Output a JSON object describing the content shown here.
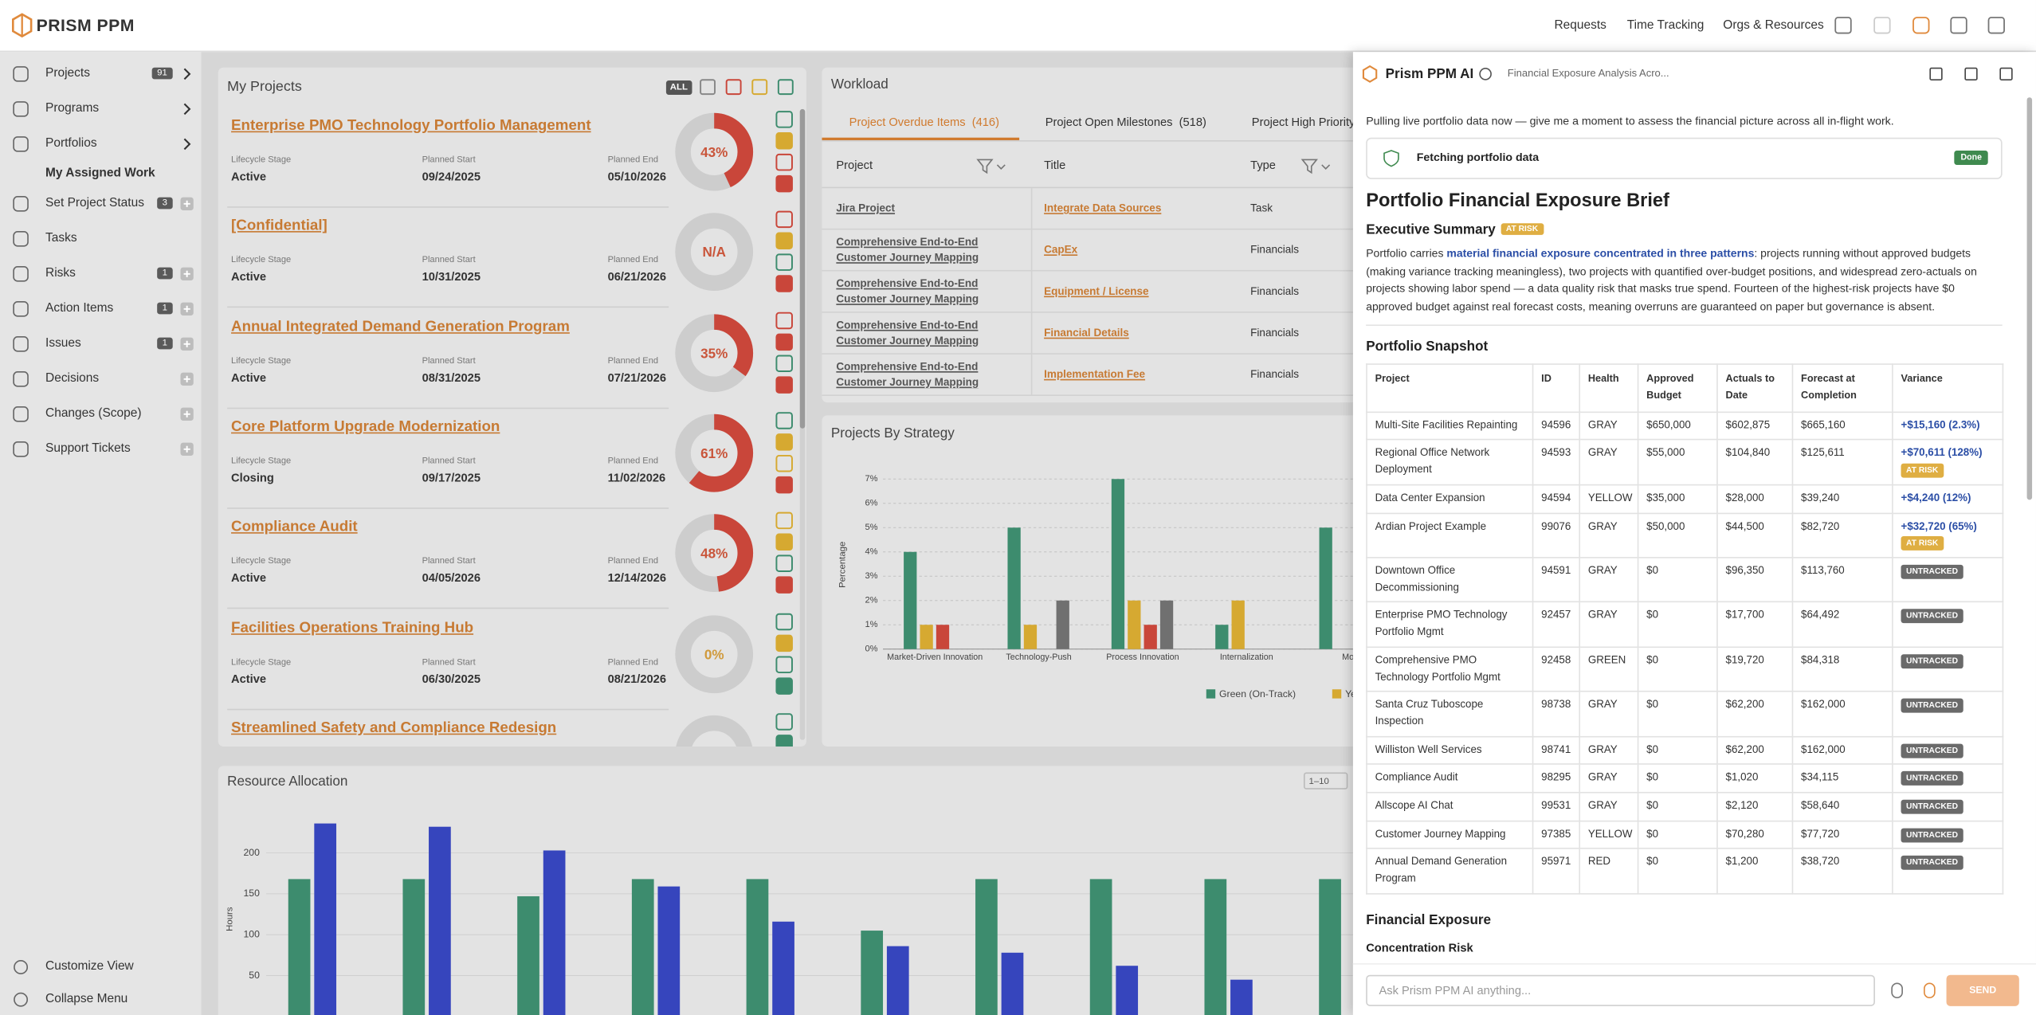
{
  "topbar": {
    "logo": "PRISM PPM",
    "nav": [
      "Requests",
      "Time Tracking",
      "Orgs & Resources"
    ]
  },
  "sidebar": {
    "items": [
      {
        "label": "Projects",
        "count": 91,
        "expandable": true
      },
      {
        "label": "Programs",
        "expandable": true
      },
      {
        "label": "Portfolios",
        "expandable": true
      },
      {
        "label": "My Assigned Work",
        "sub": true
      },
      {
        "label": "Set Project Status",
        "count": 3,
        "add": true
      },
      {
        "label": "Tasks"
      },
      {
        "label": "Risks",
        "count": 1,
        "add": true
      },
      {
        "label": "Action Items",
        "count": 1,
        "add": true
      },
      {
        "label": "Issues",
        "count": 1,
        "add": true
      },
      {
        "label": "Decisions",
        "add": true
      },
      {
        "label": "Changes (Scope)",
        "add": true
      },
      {
        "label": "Support Tickets",
        "add": true
      }
    ],
    "footer": [
      "Customize View",
      "Collapse Menu"
    ]
  },
  "my_projects": {
    "title": "My Projects",
    "filter": "ALL",
    "labels": {
      "stage": "Lifecycle Stage",
      "start": "Planned Start",
      "end": "Planned End"
    },
    "projects": [
      {
        "name": "Enterprise PMO Technology Portfolio Management",
        "stage": "Active",
        "start": "09/24/2025",
        "end": "05/10/2026",
        "progress": 43,
        "progress_label": "43%"
      },
      {
        "name": "[Confidential]",
        "stage": "Active",
        "start": "10/31/2025",
        "end": "06/21/2026",
        "progress": null,
        "progress_label": "N/A"
      },
      {
        "name": "Annual Integrated Demand Generation Program",
        "stage": "Active",
        "start": "08/31/2025",
        "end": "07/21/2026",
        "progress": 35,
        "progress_label": "35%"
      },
      {
        "name": "Core Platform Upgrade Modernization",
        "stage": "Closing",
        "start": "09/17/2025",
        "end": "11/02/2026",
        "progress": 61,
        "progress_label": "61%"
      },
      {
        "name": "Compliance Audit",
        "stage": "Active",
        "start": "04/05/2026",
        "end": "12/14/2026",
        "progress": 48,
        "progress_label": "48%"
      },
      {
        "name": "Facilities Operations Training Hub",
        "stage": "Active",
        "start": "06/30/2025",
        "end": "08/21/2026",
        "progress": 0,
        "progress_label": "0%"
      },
      {
        "name": "Streamlined Safety and Compliance Redesign"
      }
    ]
  },
  "workload": {
    "title": "Workload",
    "active_tab": 0,
    "tabs": [
      {
        "label": "Project Overdue Items",
        "count": "(416)"
      },
      {
        "label": "Project Open Milestones",
        "count": "(518)"
      },
      {
        "label": "Project High Priority"
      }
    ],
    "columns": [
      "Project",
      "Title",
      "Type"
    ],
    "rows": [
      [
        "Jira Project",
        "Integrate Data Sources",
        "Task"
      ],
      [
        "Comprehensive End-to-End Customer Journey Mapping",
        "CapEx",
        "Financials"
      ],
      [
        "Comprehensive End-to-End Customer Journey Mapping",
        "Equipment / License",
        "Financials"
      ],
      [
        "Comprehensive End-to-End Customer Journey Mapping",
        "Financial Details",
        "Financials"
      ],
      [
        "Comprehensive End-to-End Customer Journey Mapping",
        "Implementation Fee",
        "Financials"
      ]
    ]
  },
  "chart_data": [
    {
      "type": "bar",
      "title": "Projects By Strategy",
      "y_label": "Percentage",
      "categories": [
        "Market-Driven Innovation",
        "Technology-Push",
        "Process Innovation",
        "Internalization",
        "Mon"
      ],
      "series": [
        {
          "name": "Green (On-Track)",
          "color": "#3d8c6e",
          "values": [
            4,
            5,
            7,
            1,
            5
          ]
        },
        {
          "name": "Yellow",
          "color": "#d6a931",
          "values": [
            1,
            1,
            2,
            2,
            null
          ]
        },
        {
          "color": "#c9463a",
          "values": [
            1,
            null,
            1,
            null,
            null
          ]
        },
        {
          "color": "#707070",
          "values": [
            null,
            2,
            2,
            null,
            null
          ]
        }
      ],
      "ylim": [
        0,
        7
      ],
      "yticks": [
        {
          "value": 0,
          "label": "0%"
        },
        {
          "value": 1,
          "label": "1%"
        },
        {
          "value": 2,
          "label": "2%"
        },
        {
          "value": 3,
          "label": "3%"
        },
        {
          "value": 4,
          "label": "4%"
        },
        {
          "value": 5,
          "label": "5%"
        },
        {
          "value": 6,
          "label": "6%"
        },
        {
          "value": 7,
          "label": "7%"
        }
      ],
      "grid": true
    },
    {
      "type": "bar",
      "title": "Resource Allocation",
      "y_label": "Hours",
      "page_size": "1–10",
      "categories": [
        null,
        null,
        null,
        null,
        null,
        null,
        null,
        null,
        null,
        null
      ],
      "series": [
        {
          "color": "#3d8c6e",
          "values": [
            168,
            168,
            147,
            168,
            168,
            105,
            168,
            168,
            168,
            168
          ]
        },
        {
          "color": "#3645bd",
          "values": [
            236,
            232,
            203,
            159,
            116,
            86,
            78,
            62,
            45,
            null
          ]
        }
      ],
      "ylim": [
        0,
        250
      ],
      "yticks": [
        50,
        100,
        150,
        200
      ],
      "grid": true
    }
  ],
  "ai_panel": {
    "title": "Prism PPM AI",
    "conversation": "Financial Exposure Analysis Acro...",
    "message": "Pulling live portfolio data now — give me a moment to assess the financial picture across all in-flight work.",
    "tool": {
      "label": "Fetching portfolio data",
      "status": "Done"
    },
    "brief_title": "Portfolio Financial Exposure Brief",
    "summary": {
      "heading": "Executive Summary",
      "badge": "AT RISK",
      "text_before": "Portfolio carries ",
      "highlight": "material financial exposure concentrated in three patterns",
      "text_after": ": projects running without approved budgets (making variance tracking meaningless), two projects with quantified over-budget positions, and widespread zero-actuals on projects showing labor spend — a data quality risk that masks true spend. Fourteen of the highest-risk projects have $0 approved budget against real forecast costs, meaning overruns are guaranteed on paper but governance is absent."
    },
    "snapshot": {
      "heading": "Portfolio Snapshot",
      "columns": [
        "Project",
        "ID",
        "Health",
        "Approved Budget",
        "Actuals to Date",
        "Forecast at Completion",
        "Variance"
      ],
      "rows": [
        [
          "Multi-Site Facilities Repainting",
          "94596",
          "GRAY",
          "$650,000",
          "$602,875",
          "$665,160",
          {
            "text": "+$15,160 (2.3%)"
          }
        ],
        [
          "Regional Office Network Deployment",
          "94593",
          "GRAY",
          "$55,000",
          "$104,840",
          "$125,611",
          {
            "text": "+$70,611 (128%)",
            "badge": "AT RISK"
          }
        ],
        [
          "Data Center Expansion",
          "94594",
          "YELLOW",
          "$35,000",
          "$28,000",
          "$39,240",
          {
            "text": "+$4,240 (12%)"
          }
        ],
        [
          "Ardian Project Example",
          "99076",
          "GRAY",
          "$50,000",
          "$44,500",
          "$82,720",
          {
            "text": "+$32,720 (65%)",
            "badge": "AT RISK"
          }
        ],
        [
          "Downtown Office Decommissioning",
          "94591",
          "GRAY",
          "$0",
          "$96,350",
          "$113,760",
          {
            "badge": "UNTRACKED"
          }
        ],
        [
          "Enterprise PMO Technology Portfolio Mgmt",
          "92457",
          "GRAY",
          "$0",
          "$17,700",
          "$64,492",
          {
            "badge": "UNTRACKED"
          }
        ],
        [
          "Comprehensive PMO Technology Portfolio Mgmt",
          "92458",
          "GREEN",
          "$0",
          "$19,720",
          "$84,318",
          {
            "badge": "UNTRACKED"
          }
        ],
        [
          "Santa Cruz Tuboscope Inspection",
          "98738",
          "GRAY",
          "$0",
          "$62,200",
          "$162,000",
          {
            "badge": "UNTRACKED"
          }
        ],
        [
          "Williston Well Services",
          "98741",
          "GRAY",
          "$0",
          "$62,200",
          "$162,000",
          {
            "badge": "UNTRACKED"
          }
        ],
        [
          "Compliance Audit",
          "98295",
          "GRAY",
          "$0",
          "$1,020",
          "$34,115",
          {
            "badge": "UNTRACKED"
          }
        ],
        [
          "Allscope AI Chat",
          "99531",
          "GRAY",
          "$0",
          "$2,120",
          "$58,640",
          {
            "badge": "UNTRACKED"
          }
        ],
        [
          "Customer Journey Mapping",
          "97385",
          "YELLOW",
          "$0",
          "$70,280",
          "$77,720",
          {
            "badge": "UNTRACKED"
          }
        ],
        [
          "Annual Demand Generation Program",
          "95971",
          "RED",
          "$0",
          "$1,200",
          "$38,720",
          {
            "badge": "UNTRACKED"
          }
        ]
      ]
    },
    "exposure_heading": "Financial Exposure",
    "concentration_heading": "Concentration Risk",
    "input_placeholder": "Ask Prism PPM AI anything...",
    "send": "SEND"
  }
}
